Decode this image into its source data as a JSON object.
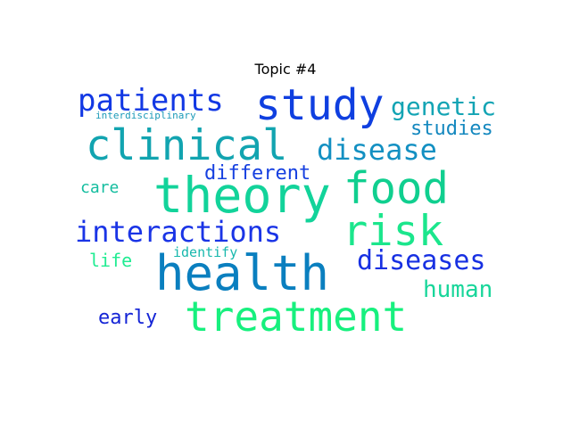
{
  "title": "Topic #4",
  "words": [
    {
      "text": "health",
      "color": "#0a7fbf"
    },
    {
      "text": "theory",
      "color": "#12d39a"
    },
    {
      "text": "treatment",
      "color": "#17f07e"
    },
    {
      "text": "clinical",
      "color": "#12a4b0"
    },
    {
      "text": "study",
      "color": "#0f3fe0"
    },
    {
      "text": "risk",
      "color": "#1be68c"
    },
    {
      "text": "food",
      "color": "#10cf8f"
    },
    {
      "text": "patients",
      "color": "#1238e4"
    },
    {
      "text": "interactions",
      "color": "#1a34e6"
    },
    {
      "text": "disease",
      "color": "#1390c2"
    },
    {
      "text": "diseases",
      "color": "#1730e2"
    },
    {
      "text": "genetic",
      "color": "#13a4b4"
    },
    {
      "text": "human",
      "color": "#18d69a"
    },
    {
      "text": "studies",
      "color": "#1488bf"
    },
    {
      "text": "different",
      "color": "#1640e0"
    },
    {
      "text": "early",
      "color": "#1424d6"
    },
    {
      "text": "life",
      "color": "#20ec92"
    },
    {
      "text": "care",
      "color": "#14bd9f"
    },
    {
      "text": "identify",
      "color": "#18b8ad"
    },
    {
      "text": "interdisciplinary",
      "color": "#1a9ab8"
    }
  ]
}
